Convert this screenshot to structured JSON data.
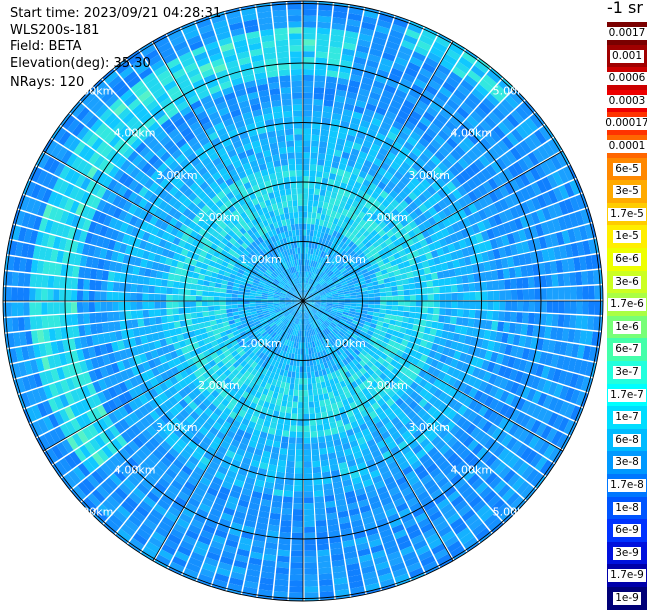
{
  "info": {
    "start_time": "Start time: 2023/09/21 04:28:31",
    "device": "WLS200s-181",
    "field": "Field: BETA",
    "elevation": "Elevation(deg): 35.30",
    "nrays": "NRays: 120"
  },
  "unit_label": "-1 sr",
  "chart_data": {
    "type": "heatmap",
    "projection": "polar (PPI scan)",
    "field": "BETA",
    "n_rays": 120,
    "range_rings_km": [
      1.0,
      2.0,
      3.0,
      4.0,
      5.0
    ],
    "range_ring_labels": [
      "1.00km",
      "2.00km",
      "3.00km",
      "4.00km",
      "5.00km"
    ],
    "max_range_km": 5.0,
    "colorbar_labels": [
      "0.0017",
      "0.001",
      "0.0006",
      "0.0003",
      "0.00017",
      "0.0001",
      "6e-5",
      "3e-5",
      "1.7e-5",
      "1e-5",
      "6e-6",
      "3e-6",
      "1.7e-6",
      "1e-6",
      "6e-7",
      "3e-7",
      "1.7e-7",
      "1e-7",
      "6e-8",
      "3e-8",
      "1.7e-8",
      "1e-8",
      "6e-9",
      "3e-9",
      "1.7e-9",
      "1e-9"
    ],
    "colorbar_colors": [
      "#7a0000",
      "#a00000",
      "#cc0000",
      "#ee0000",
      "#ff3300",
      "#ff6600",
      "#ff8800",
      "#ffaa00",
      "#ffcc00",
      "#ffee00",
      "#eeff00",
      "#ccff22",
      "#aaff44",
      "#77ff77",
      "#44ffaa",
      "#22ffdd",
      "#00ffff",
      "#00ddff",
      "#00bbff",
      "#0099ff",
      "#0077ff",
      "#0055ff",
      "#0033ff",
      "#0011dd",
      "#0000aa",
      "#000077"
    ]
  }
}
